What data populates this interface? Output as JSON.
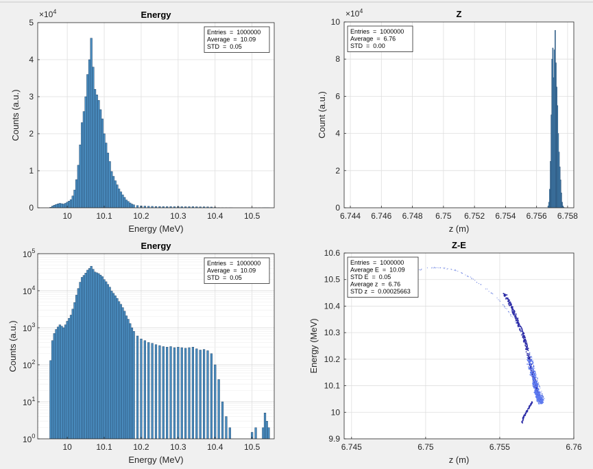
{
  "chart_data": [
    {
      "type": "bar",
      "title": "Energy",
      "xlabel": "Energy (MeV)",
      "ylabel": "Counts (a.u.)",
      "xlim": [
        9.92,
        10.56
      ],
      "ylim": [
        0,
        50000
      ],
      "yscale_exponent_label": "×10",
      "yscale_exponent_power": "4",
      "xticks": [
        10,
        10.1,
        10.2,
        10.3,
        10.4,
        10.5
      ],
      "xtick_labels": [
        "10",
        "10.1",
        "10.2",
        "10.3",
        "10.4",
        "10.5"
      ],
      "yticks": [
        0,
        10000,
        20000,
        30000,
        40000,
        50000
      ],
      "ytick_labels": [
        "0",
        "1",
        "2",
        "3",
        "4",
        "5"
      ],
      "grid": true,
      "legend_position": "top-right",
      "stats": [
        "Entries  =  1000000",
        "Average  =  10.09",
        "STD  =  0.05"
      ],
      "bin_width": 0.005,
      "x": [
        9.955,
        9.96,
        9.965,
        9.97,
        9.975,
        9.98,
        9.985,
        9.99,
        9.995,
        10.0,
        10.005,
        10.01,
        10.015,
        10.02,
        10.025,
        10.03,
        10.035,
        10.04,
        10.045,
        10.05,
        10.055,
        10.06,
        10.065,
        10.07,
        10.075,
        10.08,
        10.085,
        10.09,
        10.095,
        10.1,
        10.105,
        10.11,
        10.115,
        10.12,
        10.125,
        10.13,
        10.135,
        10.14,
        10.145,
        10.15,
        10.155,
        10.16,
        10.165,
        10.17,
        10.175,
        10.18,
        10.19,
        10.2,
        10.21,
        10.22,
        10.23,
        10.24,
        10.25,
        10.26,
        10.27,
        10.28,
        10.29,
        10.3,
        10.31,
        10.32,
        10.33,
        10.34,
        10.35,
        10.36,
        10.37,
        10.38,
        10.39,
        10.4,
        10.41,
        10.42,
        10.43,
        10.44,
        10.445,
        10.5,
        10.51,
        10.52,
        10.53,
        10.535,
        10.54,
        10.545
      ],
      "values": [
        130,
        450,
        700,
        900,
        1050,
        1200,
        1100,
        1000,
        1200,
        1500,
        1800,
        2200,
        3200,
        4800,
        7600,
        11500,
        17000,
        23000,
        26000,
        30000,
        36000,
        40000,
        45800,
        38000,
        32000,
        30500,
        29000,
        26500,
        24000,
        20000,
        17500,
        14800,
        12500,
        9800,
        8500,
        7300,
        6200,
        5100,
        4300,
        3500,
        2800,
        2100,
        1700,
        1300,
        1000,
        800,
        600,
        500,
        450,
        400,
        380,
        350,
        330,
        310,
        300,
        310,
        290,
        300,
        290,
        280,
        290,
        300,
        270,
        250,
        260,
        240,
        200,
        100,
        40,
        10,
        4,
        2,
        1,
        1.5,
        2,
        1,
        2,
        5,
        3,
        2
      ]
    },
    {
      "type": "bar",
      "title": "Z",
      "xlabel": "z (m)",
      "ylabel": "Count (a.u.)",
      "xlim": [
        6.7436,
        6.7584
      ],
      "ylim": [
        0,
        100000
      ],
      "yscale_exponent_label": "×10",
      "yscale_exponent_power": "4",
      "xticks": [
        6.744,
        6.746,
        6.748,
        6.75,
        6.752,
        6.754,
        6.756,
        6.758
      ],
      "xtick_labels": [
        "6.744",
        "6.746",
        "6.748",
        "6.75",
        "6.752",
        "6.754",
        "6.756",
        "6.758"
      ],
      "yticks": [
        0,
        20000,
        40000,
        60000,
        80000,
        100000
      ],
      "ytick_labels": [
        "0",
        "2",
        "4",
        "6",
        "8",
        "10"
      ],
      "grid": true,
      "legend_position": "top-left",
      "stats": [
        "Entries  =  1000000",
        "Average  =  6.76",
        "STD  =  0.00"
      ],
      "bin_width": 5e-05,
      "x": [
        6.75675,
        6.7568,
        6.75685,
        6.7569,
        6.75695,
        6.757,
        6.75705,
        6.7571,
        6.75715,
        6.7572,
        6.75725,
        6.7573,
        6.75735,
        6.7574,
        6.75745,
        6.7575,
        6.75755,
        6.7576,
        6.75765,
        6.7577,
        6.75775
      ],
      "values": [
        1000,
        3000,
        10000,
        25000,
        50000,
        80000,
        86000,
        70000,
        85000,
        95500,
        78000,
        65000,
        55000,
        40000,
        30000,
        22000,
        15000,
        8000,
        3000,
        1000,
        300
      ]
    },
    {
      "type": "bar",
      "title": "Energy",
      "xlabel": "Energy (MeV)",
      "ylabel": "Counts (a.u.)",
      "xlim": [
        9.92,
        10.56
      ],
      "ylim": [
        1,
        100000
      ],
      "yscale": "log",
      "xticks": [
        10,
        10.1,
        10.2,
        10.3,
        10.4,
        10.5
      ],
      "xtick_labels": [
        "10",
        "10.1",
        "10.2",
        "10.3",
        "10.4",
        "10.5"
      ],
      "ytick_exponents": [
        0,
        1,
        2,
        3,
        4,
        5
      ],
      "ytick_base": "10",
      "grid": true,
      "legend_position": "top-right",
      "stats": [
        "Entries  =  1000000",
        "Average  =  10.09",
        "STD  =  0.05"
      ]
    },
    {
      "type": "scatter",
      "title": "Z-E",
      "xlabel": "z (m)",
      "ylabel": "Energy (MeV)",
      "xlim": [
        6.7445,
        6.76
      ],
      "ylim": [
        9.9,
        10.6
      ],
      "xticks": [
        6.745,
        6.75,
        6.755,
        6.76
      ],
      "xtick_labels": [
        "6.745",
        "6.75",
        "6.755",
        "6.76"
      ],
      "yticks": [
        9.9,
        10,
        10.1,
        10.2,
        10.3,
        10.4,
        10.5,
        10.6
      ],
      "ytick_labels": [
        "9.9",
        "10",
        "10.1",
        "10.2",
        "10.3",
        "10.4",
        "10.5",
        "10.6"
      ],
      "grid": true,
      "legend_position": "top-left",
      "stats": [
        "Entries  =  1000000",
        "Average E  =  10.09",
        "STD E  =  0.05",
        "Average z  =  6.76",
        "STD z  =  0.00025663"
      ],
      "trace_z": [
        6.7493,
        6.75,
        6.751,
        6.752,
        6.753,
        6.754,
        6.755,
        6.7556,
        6.7562,
        6.7567,
        6.7571,
        6.7574,
        6.7576,
        6.7578,
        6.7579,
        6.758
      ],
      "trace_e": [
        10.53,
        10.545,
        10.545,
        10.535,
        10.51,
        10.47,
        10.42,
        10.38,
        10.33,
        10.27,
        10.21,
        10.16,
        10.11,
        10.08,
        10.06,
        10.05
      ],
      "core_z": [
        6.7553,
        6.7557,
        6.756,
        6.7563,
        6.7566,
        6.7568,
        6.757,
        6.7572,
        6.7574,
        6.7575,
        6.7576,
        6.7577,
        6.7578
      ],
      "core_e": [
        10.45,
        10.41,
        10.37,
        10.33,
        10.29,
        10.25,
        10.2,
        10.15,
        10.11,
        10.08,
        10.06,
        10.05,
        10.04
      ],
      "lower_z": [
        6.7572,
        6.757,
        6.7568,
        6.7566,
        6.7565
      ],
      "lower_e": [
        10.04,
        10.02,
        10.0,
        9.98,
        9.96
      ],
      "colors": {
        "dense": "#2b2ba6",
        "mid": "#3c5ad8",
        "light": "#5e7bf0"
      }
    }
  ],
  "colors": {
    "bar_fill": "#4a8dc0",
    "bar_edge": "#24476a",
    "axes_bg": "#ffffff",
    "grid": "#dedede",
    "figure_bg": "#f0f0f0"
  }
}
